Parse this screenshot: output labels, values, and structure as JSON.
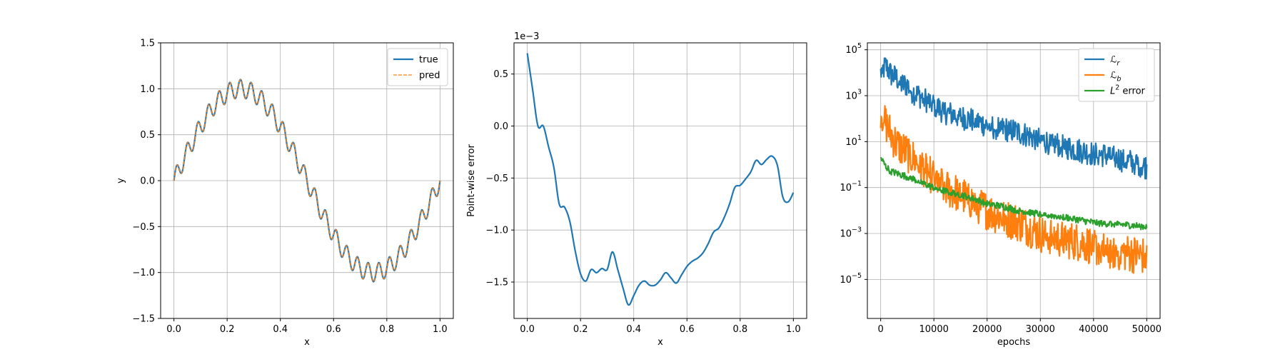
{
  "chart_data": [
    {
      "type": "line",
      "xlabel": "x",
      "ylabel": "y",
      "xlim": [
        -0.05,
        1.05
      ],
      "ylim": [
        -1.5,
        1.5
      ],
      "xticks": [
        0.0,
        0.2,
        0.4,
        0.6,
        0.8,
        1.0
      ],
      "xtick_labels": [
        "0.0",
        "0.2",
        "0.4",
        "0.6",
        "0.8",
        "1.0"
      ],
      "yticks": [
        -1.5,
        -1.0,
        -0.5,
        0.0,
        0.5,
        1.0,
        1.5
      ],
      "ytick_labels": [
        "−1.5",
        "−1.0",
        "−0.5",
        "0.0",
        "0.5",
        "1.0",
        "1.5"
      ],
      "grid": true,
      "legend_position": "top-right",
      "function": "y = sin(2πx) + 0.1·sin(50πx)",
      "series": [
        {
          "name": "true",
          "color": "#1f77b4",
          "style": "solid",
          "formula": "sin(2*pi*x) + 0.1*sin(50*pi*x)",
          "x_range": [
            0,
            1
          ]
        },
        {
          "name": "pred",
          "color": "#ff7f0e",
          "style": "dashed",
          "formula": "sin(2*pi*x) + 0.1*sin(50*pi*x)",
          "x_range": [
            0,
            1
          ]
        }
      ]
    },
    {
      "type": "line",
      "xlabel": "x",
      "ylabel": "Point-wise error",
      "offset_label": "1e−3",
      "xlim": [
        -0.05,
        1.05
      ],
      "ylim": [
        -1.85,
        0.8
      ],
      "xticks": [
        0.0,
        0.2,
        0.4,
        0.6,
        0.8,
        1.0
      ],
      "xtick_labels": [
        "0.0",
        "0.2",
        "0.4",
        "0.6",
        "0.8",
        "1.0"
      ],
      "yticks": [
        -1.5,
        -1.0,
        -0.5,
        0.0,
        0.5
      ],
      "ytick_labels": [
        "−1.5",
        "−1.0",
        "−0.5",
        "0.0",
        "0.5"
      ],
      "grid": true,
      "series": [
        {
          "name": "",
          "color": "#1f77b4",
          "x": [
            0.0,
            0.02,
            0.04,
            0.06,
            0.08,
            0.1,
            0.12,
            0.14,
            0.16,
            0.18,
            0.2,
            0.22,
            0.24,
            0.26,
            0.28,
            0.3,
            0.32,
            0.34,
            0.36,
            0.38,
            0.4,
            0.42,
            0.44,
            0.46,
            0.48,
            0.5,
            0.52,
            0.54,
            0.56,
            0.58,
            0.6,
            0.62,
            0.64,
            0.66,
            0.68,
            0.7,
            0.72,
            0.74,
            0.76,
            0.78,
            0.8,
            0.82,
            0.84,
            0.86,
            0.88,
            0.9,
            0.92,
            0.94,
            0.96,
            0.98,
            1.0
          ],
          "y": [
            0.7,
            0.35,
            0.0,
            0.0,
            -0.2,
            -0.4,
            -0.75,
            -0.78,
            -0.92,
            -1.2,
            -1.42,
            -1.49,
            -1.38,
            -1.41,
            -1.37,
            -1.38,
            -1.21,
            -1.38,
            -1.56,
            -1.72,
            -1.63,
            -1.53,
            -1.49,
            -1.53,
            -1.53,
            -1.48,
            -1.41,
            -1.46,
            -1.51,
            -1.43,
            -1.35,
            -1.3,
            -1.27,
            -1.22,
            -1.13,
            -1.02,
            -0.98,
            -0.88,
            -0.75,
            -0.59,
            -0.57,
            -0.51,
            -0.44,
            -0.33,
            -0.37,
            -0.32,
            -0.29,
            -0.38,
            -0.68,
            -0.73,
            -0.64
          ]
        }
      ]
    },
    {
      "type": "line",
      "xlabel": "epochs",
      "ylabel": "",
      "yscale": "log",
      "xlim": [
        -2500,
        52500
      ],
      "ylim": [
        2e-07,
        200000.0
      ],
      "xticks": [
        0,
        10000,
        20000,
        30000,
        40000,
        50000
      ],
      "xtick_labels": [
        "0",
        "10000",
        "20000",
        "30000",
        "40000",
        "50000"
      ],
      "yticks": [
        1e-05,
        0.001,
        0.1,
        10.0,
        1000.0,
        100000.0
      ],
      "ytick_labels": [
        {
          "base": "10",
          "exp": "−5"
        },
        {
          "base": "10",
          "exp": "−3"
        },
        {
          "base": "10",
          "exp": "−1"
        },
        {
          "base": "10",
          "exp": "1"
        },
        {
          "base": "10",
          "exp": "3"
        },
        {
          "base": "10",
          "exp": "5"
        }
      ],
      "grid": true,
      "legend_position": "top-right",
      "series": [
        {
          "name": "Lr",
          "legend_main": "ℒ",
          "legend_sub": "r",
          "legend_suffix": "",
          "color": "#1f77b4",
          "x": [
            0,
            1000,
            2000,
            3000,
            4000,
            5000,
            6000,
            8000,
            10000,
            12000,
            15000,
            18000,
            20000,
            22000,
            25000,
            28000,
            30000,
            33000,
            36000,
            40000,
            43000,
            46000,
            48000,
            50000
          ],
          "y": [
            10000,
            20000,
            8000,
            6000,
            3000,
            3000,
            1500,
            800,
            400,
            200,
            120,
            80,
            50,
            40,
            30,
            18,
            12,
            8,
            5,
            3,
            2.5,
            1.5,
            1.2,
            0.8
          ],
          "noise_amplitude_decades": 0.55
        },
        {
          "name": "Lb",
          "legend_main": "ℒ",
          "legend_sub": "b",
          "legend_suffix": "",
          "color": "#ff7f0e",
          "x": [
            0,
            1000,
            2000,
            3000,
            4000,
            6000,
            8000,
            10000,
            12000,
            15000,
            18000,
            20000,
            23000,
            26000,
            30000,
            34000,
            38000,
            42000,
            46000,
            50000
          ],
          "y": [
            250,
            60,
            20,
            8,
            5,
            2,
            0.8,
            0.3,
            0.1,
            0.05,
            0.02,
            0.01,
            0.005,
            0.003,
            0.001,
            0.0006,
            0.0004,
            0.0002,
            0.00015,
            0.0001
          ],
          "noise_amplitude_decades": 0.85
        },
        {
          "name": "L2 error",
          "legend_main": "L",
          "legend_sup": "2",
          "legend_suffix": " error",
          "color": "#2ca02c",
          "x": [
            0,
            1000,
            2000,
            4000,
            6000,
            8000,
            10000,
            12000,
            15000,
            18000,
            20000,
            23000,
            26000,
            30000,
            35000,
            40000,
            45000,
            50000
          ],
          "y": [
            2.0,
            0.8,
            0.5,
            0.35,
            0.25,
            0.15,
            0.1,
            0.07,
            0.05,
            0.03,
            0.02,
            0.015,
            0.01,
            0.007,
            0.005,
            0.003,
            0.0025,
            0.002
          ],
          "noise_amplitude_decades": 0.15
        }
      ]
    }
  ]
}
